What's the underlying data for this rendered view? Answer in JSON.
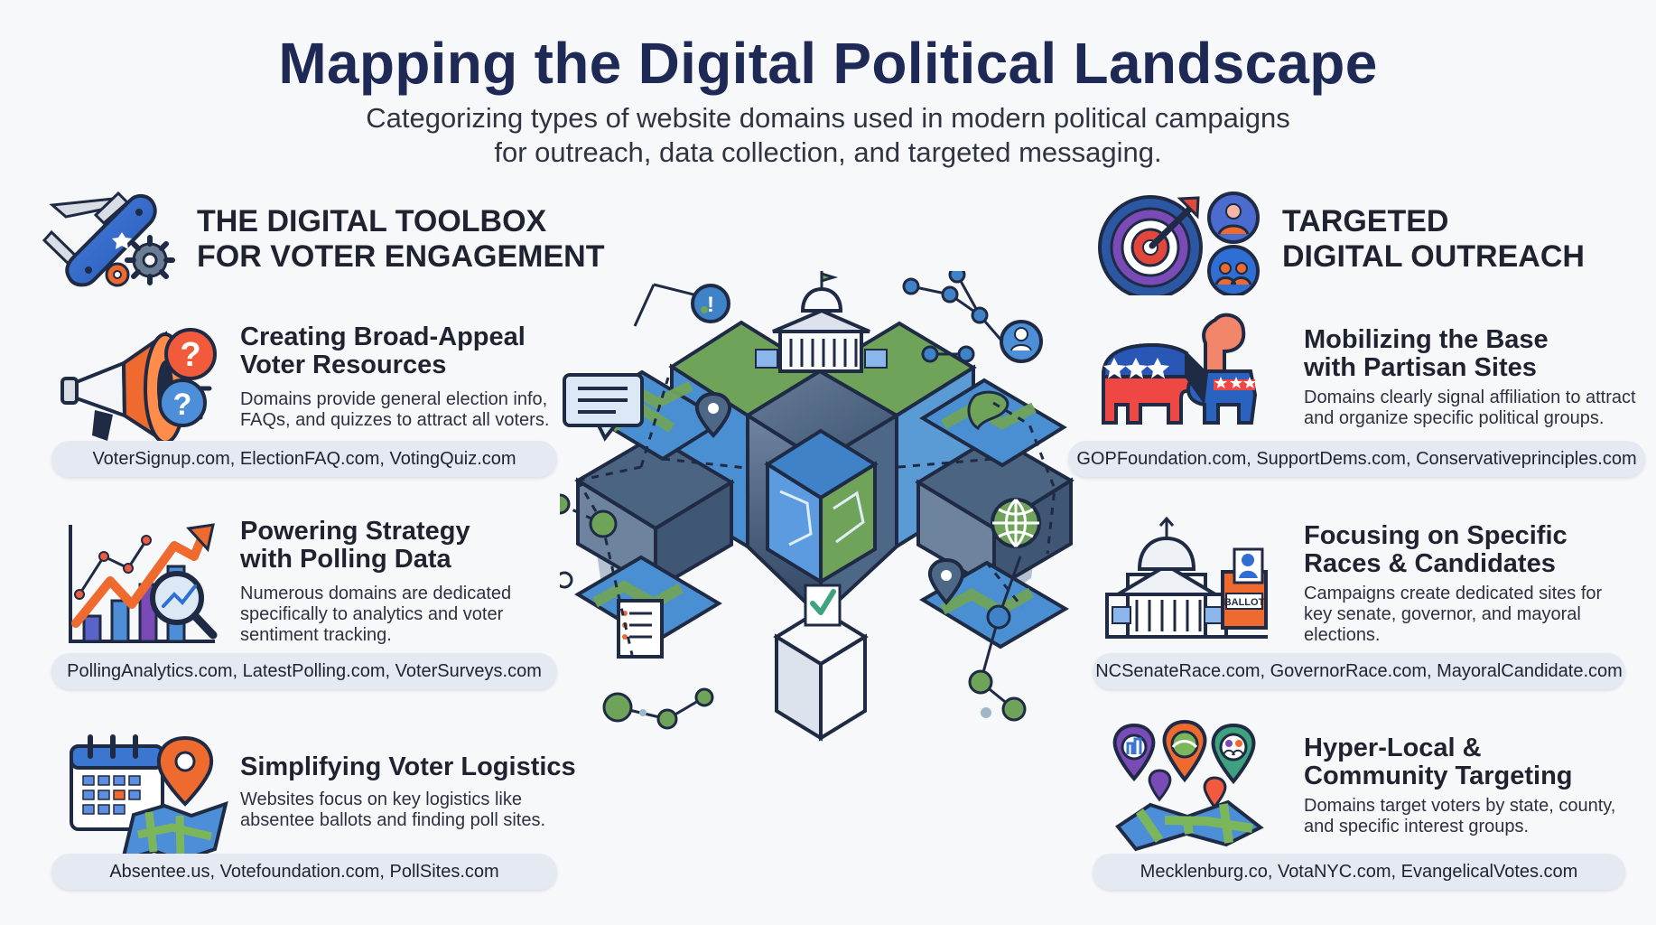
{
  "header": {
    "title": "Mapping the Digital Political Landscape",
    "subtitle": "Categorizing types of website domains used in modern political campaigns\nfor outreach, data collection, and targeted messaging."
  },
  "left_section": {
    "title": "THE DIGITAL TOOLBOX\nFOR VOTER ENGAGEMENT",
    "icon": "swiss-army-knife-gear-icon",
    "cards": [
      {
        "title": "Creating Broad-Appeal\nVoter Resources",
        "description": "Domains provide general election info,\nFAQs, and quizzes to attract all voters.",
        "domains": "VoterSignup.com, ElectionFAQ.com, VotingQuiz.com",
        "icon": "megaphone-question-icon"
      },
      {
        "title": "Powering Strategy\nwith Polling Data",
        "description": "Numerous domains are dedicated\nspecifically to analytics and voter\nsentiment tracking.",
        "domains": "PollingAnalytics.com, LatestPolling.com, VoterSurveys.com",
        "icon": "growth-chart-magnifier-icon"
      },
      {
        "title": "Simplifying Voter Logistics",
        "description": "Websites focus on key logistics like\nabsentee ballots and finding poll sites.",
        "domains": "Absentee.us, Votefoundation.com, PollSites.com",
        "icon": "calendar-map-pin-icon"
      }
    ]
  },
  "right_section": {
    "title": "TARGETED\nDIGITAL OUTREACH",
    "icon": "target-audience-icon",
    "cards": [
      {
        "title": "Mobilizing the Base\nwith Partisan Sites",
        "description": "Domains clearly signal affiliation to attract\nand organize specific political groups.",
        "domains": "GOPFoundation.com, SupportDems.com, Conservativeprinciples.com",
        "icon": "party-mascots-icon"
      },
      {
        "title": "Focusing on Specific\nRaces & Candidates",
        "description": "Campaigns create dedicated sites for\nkey senate, governor, and mayoral\nelections.",
        "domains": "NCSenateRace.com, GovernorRace.com, MayoralCandidate.com",
        "icon": "capitol-ballot-box-icon",
        "icon_text": "BALLOT"
      },
      {
        "title": "Hyper-Local &\nCommunity Targeting",
        "description": "Domains target voters by state, county,\nand specific interest groups.",
        "domains": "Mecklenburg.co, VotaNYC.com, EvangelicalVotes.com",
        "icon": "community-map-pins-icon"
      }
    ]
  },
  "center_visual": {
    "icon": "political-network-map-icon"
  },
  "colors": {
    "title_navy": "#1e2a55",
    "slate": "#3f5674",
    "green": "#6fa35a",
    "blue": "#3f82c8",
    "orange": "#ef6a2f",
    "red": "#e2473c",
    "pill_bg": "#e4e9f2"
  }
}
